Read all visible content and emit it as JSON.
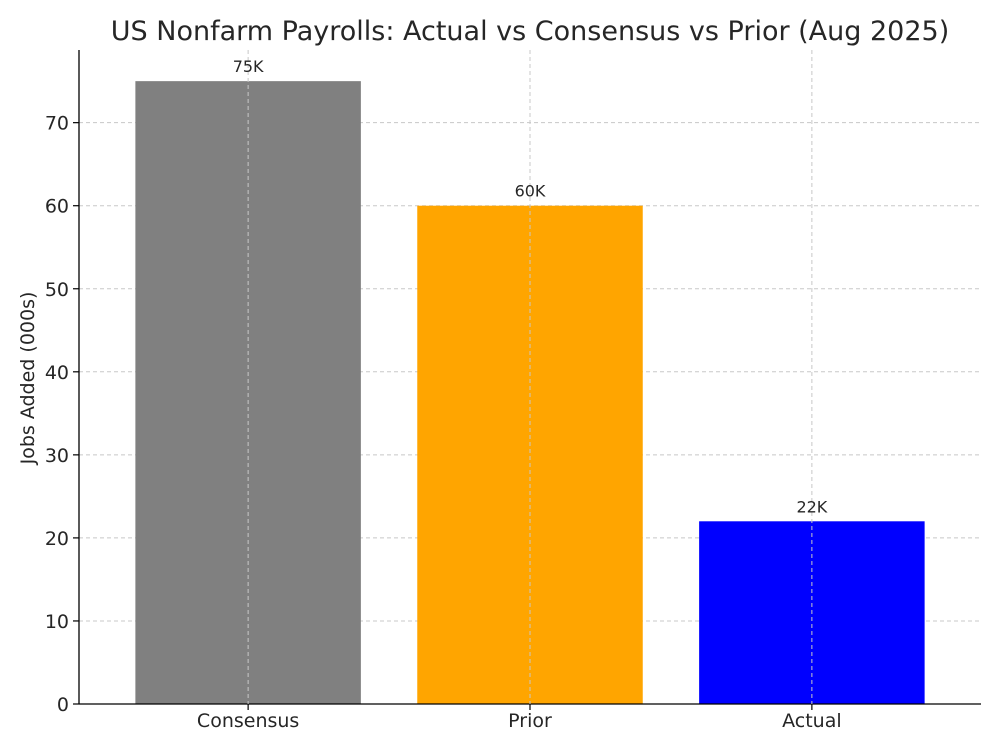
{
  "chart_data": {
    "type": "bar",
    "title": "US Nonfarm Payrolls: Actual vs Consensus vs Prior (Aug 2025)",
    "xlabel": "",
    "ylabel": "Jobs Added (000s)",
    "categories": [
      "Consensus",
      "Prior",
      "Actual"
    ],
    "values": [
      75,
      60,
      22
    ],
    "data_labels": [
      "75K",
      "60K",
      "22K"
    ],
    "colors": [
      "#808080",
      "#FFA500",
      "#0000FF"
    ],
    "ylim": [
      0,
      78.75
    ],
    "yticks": [
      0,
      10,
      20,
      30,
      40,
      50,
      60,
      70
    ],
    "grid": true
  }
}
